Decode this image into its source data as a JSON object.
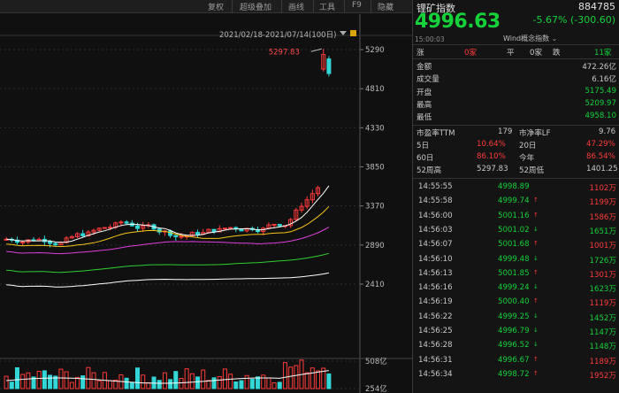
{
  "toolbar": {
    "items": [
      "复权",
      "超级叠加",
      "画线",
      "工具",
      "F9",
      "隐藏"
    ]
  },
  "chart_data": {
    "type": "candlestick",
    "date_range": "2021/02/18-2021/07/14(100日)",
    "max_label": "5297.83",
    "price_axis": [
      "5290",
      "4810",
      "4330",
      "3850",
      "3370",
      "2890",
      "2410"
    ],
    "volume_axis": [
      "508亿",
      "254亿"
    ],
    "ylim": [
      2410,
      5290
    ],
    "colors": {
      "up": "#ff3a3a",
      "down": "#33d6d6",
      "ma5": "#ffffff",
      "ma10": "#f5c518",
      "ma20": "#e040e0",
      "ma60": "#2fcf2f",
      "ma120": "#ffffff"
    }
  },
  "panel": {
    "name": "锂矿指数",
    "code": "884785",
    "price": "4996.63",
    "change": "-5.67% (-300.60)",
    "time": "15:00:03",
    "wind_label": "Wind概念指数",
    "breadth": {
      "up_label": "涨",
      "up_val": "0家",
      "flat_label": "平",
      "flat_val": "0家",
      "down_label": "跌",
      "down_val": "11家"
    },
    "stats": [
      {
        "label": "金额",
        "value": "472.26亿",
        "color": "wht"
      },
      {
        "label": "成交量",
        "value": "6.16亿",
        "color": "wht"
      },
      {
        "label": "开盘",
        "value": "5175.49",
        "color": "green"
      },
      {
        "label": "最高",
        "value": "5209.97",
        "color": "green"
      },
      {
        "label": "最低",
        "value": "4958.10",
        "color": "green"
      }
    ],
    "pe_label": "市盈率TTM",
    "pe_value": "179",
    "pb_label": "市净率LF",
    "pb_value": "9.76",
    "returns": [
      {
        "l1": "5日",
        "v1": "10.64%",
        "l2": "20日",
        "v2": "47.29%"
      },
      {
        "l1": "60日",
        "v1": "86.10%",
        "l2": "今年",
        "v2": "86.54%"
      }
    ],
    "wk52": {
      "l1": "52周高",
      "v1": "5297.83",
      "l2": "52周低",
      "v2": "1401.25"
    },
    "ticks": [
      {
        "time": "14:55:55",
        "price": "4998.89",
        "dir": "",
        "vol": "1102万",
        "pc": "green",
        "vc": "red"
      },
      {
        "time": "14:55:58",
        "price": "4999.74",
        "dir": "↑",
        "vol": "1199万",
        "pc": "green",
        "vc": "red"
      },
      {
        "time": "14:56:00",
        "price": "5001.16",
        "dir": "↑",
        "vol": "1586万",
        "pc": "green",
        "vc": "red"
      },
      {
        "time": "14:56:03",
        "price": "5001.02",
        "dir": "↓",
        "vol": "1651万",
        "pc": "green",
        "vc": "green"
      },
      {
        "time": "14:56:07",
        "price": "5001.68",
        "dir": "↑",
        "vol": "1001万",
        "pc": "green",
        "vc": "red"
      },
      {
        "time": "14:56:10",
        "price": "4999.48",
        "dir": "↓",
        "vol": "1726万",
        "pc": "green",
        "vc": "green"
      },
      {
        "time": "14:56:13",
        "price": "5001.85",
        "dir": "↑",
        "vol": "1301万",
        "pc": "green",
        "vc": "red"
      },
      {
        "time": "14:56:16",
        "price": "4999.24",
        "dir": "↓",
        "vol": "1623万",
        "pc": "green",
        "vc": "green"
      },
      {
        "time": "14:56:19",
        "price": "5000.40",
        "dir": "↑",
        "vol": "1119万",
        "pc": "green",
        "vc": "red"
      },
      {
        "time": "14:56:22",
        "price": "4999.25",
        "dir": "↓",
        "vol": "1452万",
        "pc": "green",
        "vc": "green"
      },
      {
        "time": "14:56:25",
        "price": "4996.79",
        "dir": "↓",
        "vol": "1147万",
        "pc": "green",
        "vc": "green"
      },
      {
        "time": "14:56:28",
        "price": "4996.52",
        "dir": "↓",
        "vol": "1148万",
        "pc": "green",
        "vc": "green"
      },
      {
        "time": "14:56:31",
        "price": "4996.67",
        "dir": "↑",
        "vol": "1189万",
        "pc": "green",
        "vc": "red"
      },
      {
        "time": "14:56:34",
        "price": "4998.72",
        "dir": "↑",
        "vol": "1952万",
        "pc": "green",
        "vc": "red"
      }
    ]
  }
}
